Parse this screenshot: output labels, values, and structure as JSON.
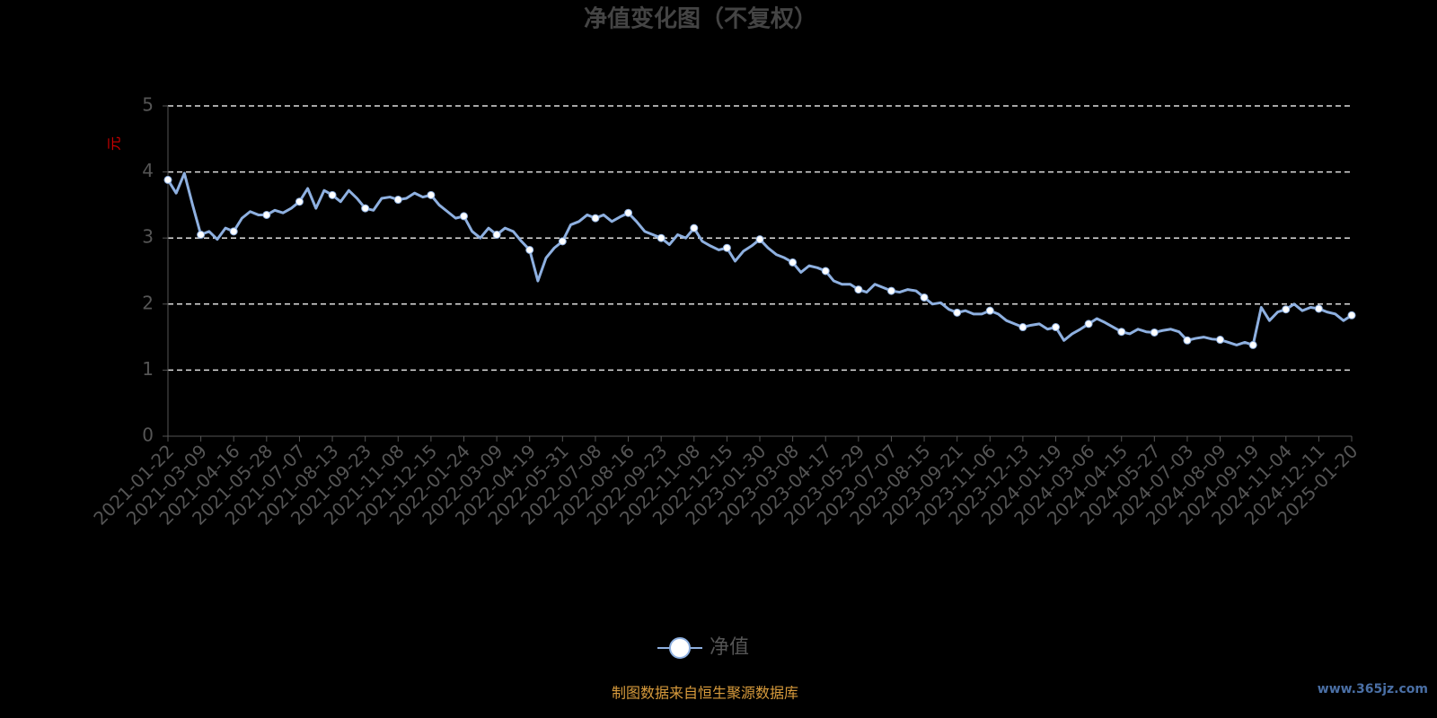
{
  "chart_data": {
    "type": "line",
    "title": "净值变化图（不复权）",
    "y_label": "元",
    "categories": [
      "2021-01-22",
      null,
      null,
      null,
      "2021-03-09",
      null,
      null,
      null,
      "2021-04-16",
      null,
      null,
      null,
      "2021-05-28",
      null,
      null,
      null,
      "2021-07-07",
      null,
      null,
      null,
      "2021-08-13",
      null,
      null,
      null,
      "2021-09-23",
      null,
      null,
      null,
      "2021-11-08",
      null,
      null,
      null,
      "2021-12-15",
      null,
      null,
      null,
      "2022-01-24",
      null,
      null,
      null,
      "2022-03-09",
      null,
      null,
      null,
      "2022-04-19",
      null,
      null,
      null,
      "2022-05-31",
      null,
      null,
      null,
      "2022-07-08",
      null,
      null,
      null,
      "2022-08-16",
      null,
      null,
      null,
      "2022-09-23",
      null,
      null,
      null,
      "2022-11-08",
      null,
      null,
      null,
      "2022-12-15",
      null,
      null,
      null,
      "2023-01-30",
      null,
      null,
      null,
      "2023-03-08",
      null,
      null,
      null,
      "2023-04-17",
      null,
      null,
      null,
      "2023-05-29",
      null,
      null,
      null,
      "2023-07-07",
      null,
      null,
      null,
      "2023-08-15",
      null,
      null,
      null,
      "2023-09-21",
      null,
      null,
      null,
      "2023-11-06",
      null,
      null,
      null,
      "2023-12-13",
      null,
      null,
      null,
      "2024-01-19",
      null,
      null,
      null,
      "2024-03-06",
      null,
      null,
      null,
      "2024-04-15",
      null,
      null,
      null,
      "2024-05-27",
      null,
      null,
      null,
      "2024-07-03",
      null,
      null,
      null,
      "2024-08-09",
      null,
      null,
      null,
      "2024-09-19",
      null,
      null,
      null,
      "2024-11-04",
      null,
      null,
      null,
      "2024-12-11",
      null,
      null,
      null,
      "2025-01-20"
    ],
    "series": [
      {
        "name": "净值",
        "color": "#8eb0e0",
        "values": [
          3.88,
          3.68,
          3.98,
          3.5,
          3.05,
          3.1,
          2.98,
          3.15,
          3.1,
          3.3,
          3.4,
          3.35,
          3.35,
          3.42,
          3.38,
          3.45,
          3.55,
          3.75,
          3.45,
          3.72,
          3.65,
          3.55,
          3.72,
          3.6,
          3.45,
          3.42,
          3.6,
          3.62,
          3.58,
          3.6,
          3.68,
          3.62,
          3.65,
          3.5,
          3.4,
          3.3,
          3.33,
          3.1,
          3,
          3.15,
          3.05,
          3.15,
          3.1,
          2.95,
          2.82,
          2.35,
          2.7,
          2.85,
          2.95,
          3.2,
          3.25,
          3.35,
          3.3,
          3.35,
          3.25,
          3.32,
          3.38,
          3.25,
          3.1,
          3.05,
          3,
          2.9,
          3.05,
          3,
          3.15,
          2.95,
          2.88,
          2.82,
          2.85,
          2.65,
          2.8,
          2.88,
          2.98,
          2.85,
          2.75,
          2.7,
          2.63,
          2.48,
          2.58,
          2.55,
          2.5,
          2.35,
          2.3,
          2.3,
          2.22,
          2.18,
          2.3,
          2.25,
          2.2,
          2.18,
          2.22,
          2.2,
          2.1,
          2,
          2.02,
          1.92,
          1.87,
          1.9,
          1.85,
          1.85,
          1.9,
          1.85,
          1.75,
          1.7,
          1.65,
          1.68,
          1.7,
          1.62,
          1.65,
          1.45,
          1.55,
          1.62,
          1.7,
          1.78,
          1.72,
          1.65,
          1.58,
          1.55,
          1.62,
          1.58,
          1.57,
          1.6,
          1.62,
          1.58,
          1.45,
          1.48,
          1.5,
          1.47,
          1.46,
          1.42,
          1.38,
          1.42,
          1.38,
          1.95,
          1.75,
          1.88,
          1.92,
          2,
          1.9,
          1.95,
          1.93,
          1.88,
          1.85,
          1.75,
          1.83
        ]
      }
    ],
    "ylim": [
      0,
      5
    ],
    "yticks": [
      0,
      1,
      2,
      3,
      4,
      5
    ],
    "grid": true,
    "source": "制图数据来自恒生聚源数据库",
    "watermark": "www.365jz.com"
  }
}
